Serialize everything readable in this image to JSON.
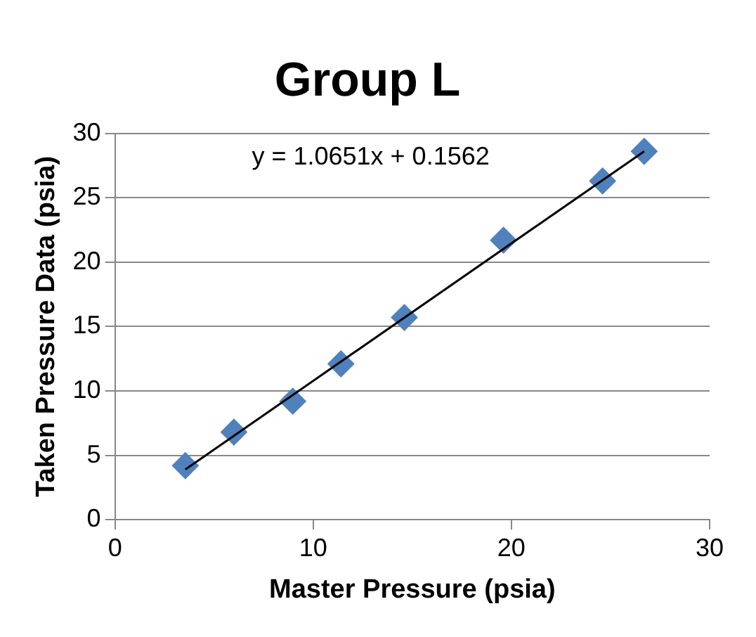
{
  "chart_data": {
    "type": "scatter",
    "title": "Group L",
    "xlabel": "Master Pressure (psia)",
    "ylabel": "Taken Pressure Data (psia)",
    "series": [
      {
        "type": "scatter",
        "color": "#4f81bd",
        "marker": "diamond",
        "x": [
          3.55,
          6.0,
          8.97,
          11.4,
          14.6,
          19.6,
          24.6,
          26.7
        ],
        "values": [
          4.2,
          6.8,
          9.2,
          12.1,
          15.7,
          21.7,
          26.3,
          28.6
        ]
      },
      {
        "type": "line",
        "color": "#000000",
        "marker": "none",
        "line_style": "solid",
        "x": [
          3.55,
          26.7
        ],
        "values": [
          3.9,
          28.6
        ]
      }
    ],
    "xlim": [
      0,
      30
    ],
    "xticks": [
      0,
      10,
      20,
      30
    ],
    "ylim": [
      0,
      30
    ],
    "yticks": [
      0,
      5,
      10,
      15,
      20,
      25,
      30
    ],
    "grid": "y",
    "legend": false,
    "annotations": [
      "y = 1.0651x + 0.1562"
    ]
  }
}
